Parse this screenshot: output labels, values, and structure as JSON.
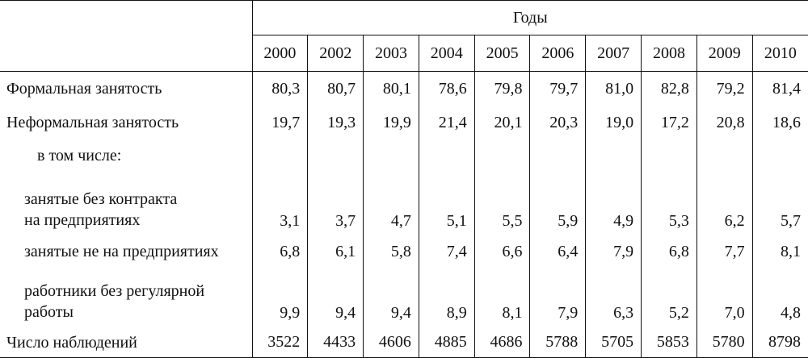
{
  "table": {
    "group_header": "Годы",
    "years": [
      "2000",
      "2002",
      "2003",
      "2004",
      "2005",
      "2006",
      "2007",
      "2008",
      "2009",
      "2010"
    ],
    "rows": [
      {
        "label": "Формальная занятость",
        "values": [
          "80,3",
          "80,7",
          "80,1",
          "78,6",
          "79,8",
          "79,7",
          "81,0",
          "82,8",
          "79,2",
          "81,4"
        ]
      },
      {
        "label": "Неформальная занятость",
        "values": [
          "19,7",
          "19,3",
          "19,9",
          "21,4",
          "20,1",
          "20,3",
          "19,0",
          "17,2",
          "20,8",
          "18,6"
        ]
      },
      {
        "label": "в том числе:",
        "values": []
      },
      {
        "label": "занятые без контракта\nна предприятиях",
        "values": [
          "3,1",
          "3,7",
          "4,7",
          "5,1",
          "5,5",
          "5,9",
          "4,9",
          "5,3",
          "6,2",
          "5,7"
        ]
      },
      {
        "label": "занятые не на предприятиях",
        "values": [
          "6,8",
          "6,1",
          "5,8",
          "7,4",
          "6,6",
          "6,4",
          "7,9",
          "6,8",
          "7,7",
          "8,1"
        ]
      },
      {
        "label": "работники без регулярной\nработы",
        "values": [
          "9,9",
          "9,4",
          "9,4",
          "8,9",
          "8,1",
          "7,9",
          "6,3",
          "5,2",
          "7,0",
          "4,8"
        ]
      },
      {
        "label": "Число наблюдений",
        "values": [
          "3522",
          "4433",
          "4606",
          "4885",
          "4686",
          "5788",
          "5705",
          "5853",
          "5780",
          "8798"
        ]
      }
    ]
  }
}
